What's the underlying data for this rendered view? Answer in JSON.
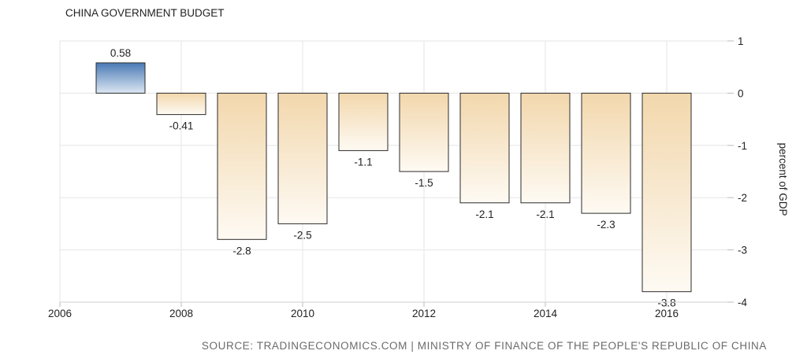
{
  "chart_data": {
    "type": "bar",
    "title": "CHINA GOVERNMENT BUDGET",
    "ylabel": "percent of GDP",
    "source": "SOURCE: TRADINGECONOMICS.COM | MINISTRY OF FINANCE OF THE PEOPLE'S REPUBLIC OF CHINA",
    "x": [
      2007,
      2008,
      2009,
      2010,
      2011,
      2012,
      2013,
      2014,
      2015,
      2016
    ],
    "values": [
      0.58,
      -0.41,
      -2.8,
      -2.5,
      -1.1,
      -1.5,
      -2.1,
      -2.1,
      -2.3,
      -3.8
    ],
    "value_labels": [
      "0.58",
      "-0.41",
      "-2.8",
      "-2.5",
      "-1.1",
      "-1.5",
      "-2.1",
      "-2.1",
      "-2.3",
      "-3.8"
    ],
    "xlim": [
      2006,
      2017
    ],
    "x_ticks": [
      "2006",
      "2008",
      "2010",
      "2012",
      "2014",
      "2016"
    ],
    "ylim": [
      -4,
      1
    ],
    "y_ticks": [
      "1",
      "0",
      "-1",
      "-2",
      "-3",
      "-4"
    ],
    "y_axis_side": "right",
    "grid": true,
    "colors": {
      "positive_top": "#4a7ab5",
      "positive_bottom": "#dce7f3",
      "negative_top": "#f2d7ac",
      "negative_bottom": "#fefaf3",
      "bar_stroke": "#2b2b2b",
      "grid": "#e6e6e6",
      "text": "#222222",
      "source_text": "#6b6b6b"
    }
  }
}
